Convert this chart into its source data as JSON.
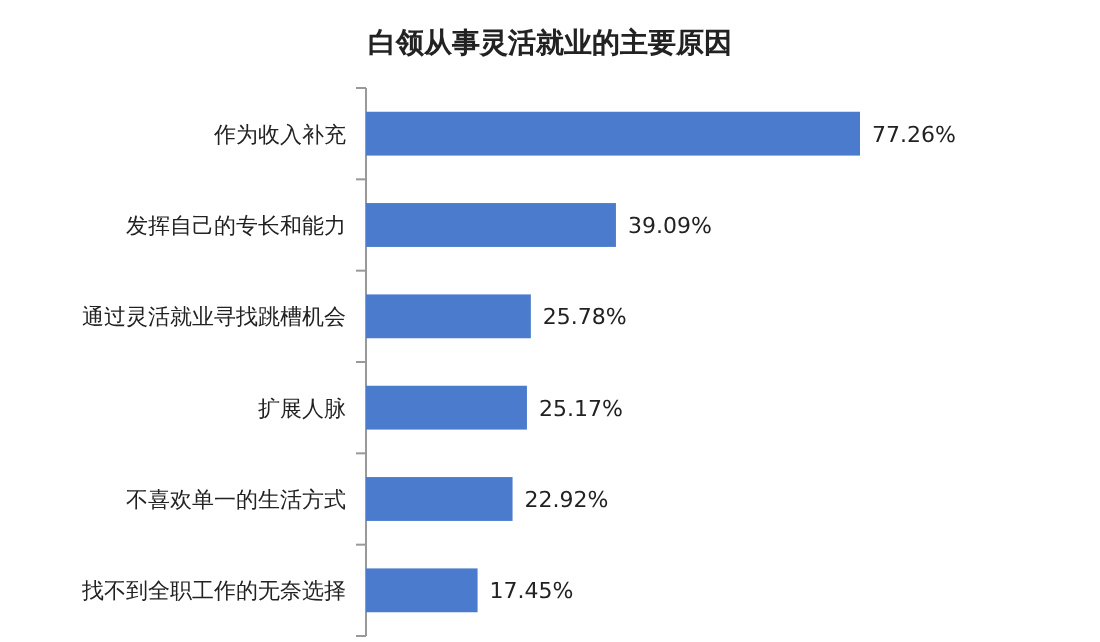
{
  "chart_data": {
    "type": "bar",
    "orientation": "horizontal",
    "title": "白领从事灵活就业的主要原因",
    "categories": [
      "作为收入补充",
      "发挥自己的专长和能力",
      "通过灵活就业寻找跳槽机会",
      "扩展人脉",
      "不喜欢单一的生活方式",
      "找不到全职工作的无奈选择"
    ],
    "values": [
      77.26,
      39.09,
      25.78,
      25.17,
      22.92,
      17.45
    ],
    "value_labels": [
      "77.26%",
      "39.09%",
      "25.78%",
      "25.17%",
      "22.92%",
      "17.45%"
    ],
    "color": "#4a7bcc"
  }
}
